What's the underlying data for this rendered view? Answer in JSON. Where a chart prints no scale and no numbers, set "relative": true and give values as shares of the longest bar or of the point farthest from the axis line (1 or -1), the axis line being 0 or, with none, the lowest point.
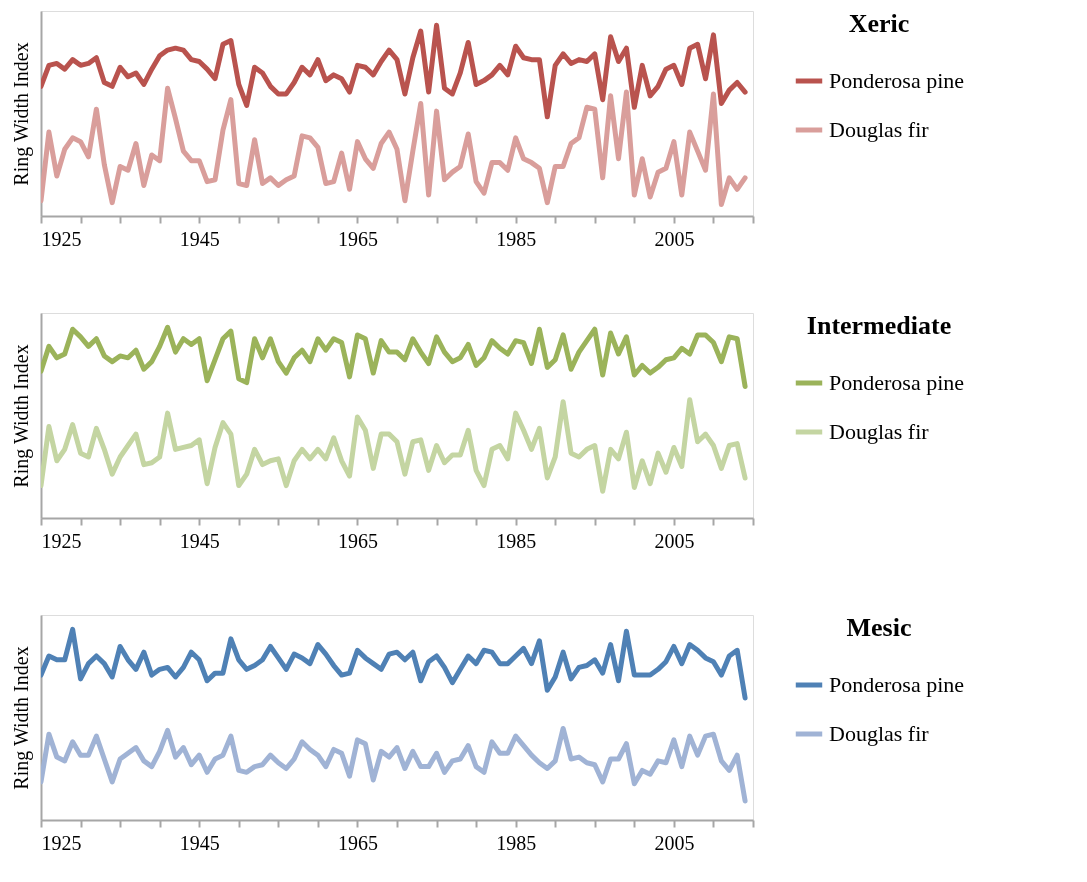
{
  "chart_data": [
    {
      "type": "line",
      "legend_title": "Xeric",
      "ylabel": "Ring Width Index",
      "relative": true,
      "legend": "right",
      "grid": false,
      "line_style": "solid",
      "xlim": [
        1925,
        2015
      ],
      "xticks": [
        1925,
        {
          "value": 1930,
          "label": null
        },
        {
          "value": 1935,
          "label": null
        },
        {
          "value": 1940,
          "label": null
        },
        1945,
        {
          "value": 1950,
          "label": null
        },
        {
          "value": 1955,
          "label": null
        },
        {
          "value": 1960,
          "label": null
        },
        1965,
        {
          "value": 1970,
          "label": null
        },
        {
          "value": 1975,
          "label": null
        },
        {
          "value": 1980,
          "label": null
        },
        1985,
        {
          "value": 1990,
          "label": null
        },
        {
          "value": 1995,
          "label": null
        },
        {
          "value": 2000,
          "label": null
        },
        2005,
        {
          "value": 2010,
          "label": null
        },
        {
          "value": 2015,
          "label": null
        }
      ],
      "x": [
        1925,
        1926,
        1927,
        1928,
        1929,
        1930,
        1931,
        1932,
        1933,
        1934,
        1935,
        1936,
        1937,
        1938,
        1939,
        1940,
        1941,
        1942,
        1943,
        1944,
        1945,
        1946,
        1947,
        1948,
        1949,
        1950,
        1951,
        1952,
        1953,
        1954,
        1955,
        1956,
        1957,
        1958,
        1959,
        1960,
        1961,
        1962,
        1963,
        1964,
        1965,
        1966,
        1967,
        1968,
        1969,
        1970,
        1971,
        1972,
        1973,
        1974,
        1975,
        1976,
        1977,
        1978,
        1979,
        1980,
        1981,
        1982,
        1983,
        1984,
        1985,
        1986,
        1987,
        1988,
        1989,
        1990,
        1991,
        1992,
        1993,
        1994,
        1995,
        1996,
        1997,
        1998,
        1999,
        2000,
        2001,
        2002,
        2003,
        2004,
        2005,
        2006,
        2007,
        2008,
        2009,
        2010,
        2011,
        2012,
        2013,
        2014
      ],
      "series": [
        {
          "name": "Ponderosa pine",
          "color": "#b9534e",
          "values": [
            0.68,
            0.79,
            0.8,
            0.77,
            0.82,
            0.79,
            0.8,
            0.83,
            0.7,
            0.68,
            0.78,
            0.73,
            0.75,
            0.69,
            0.77,
            0.84,
            0.87,
            0.88,
            0.87,
            0.82,
            0.81,
            0.77,
            0.72,
            0.9,
            0.92,
            0.69,
            0.58,
            0.78,
            0.75,
            0.68,
            0.64,
            0.64,
            0.7,
            0.78,
            0.74,
            0.82,
            0.71,
            0.74,
            0.72,
            0.65,
            0.79,
            0.78,
            0.74,
            0.81,
            0.87,
            0.82,
            0.64,
            0.83,
            0.97,
            0.65,
            1.0,
            0.67,
            0.64,
            0.75,
            0.91,
            0.69,
            0.71,
            0.74,
            0.79,
            0.74,
            0.89,
            0.83,
            0.82,
            0.82,
            0.52,
            0.79,
            0.85,
            0.8,
            0.82,
            0.81,
            0.85,
            0.61,
            0.94,
            0.81,
            0.88,
            0.57,
            0.79,
            0.63,
            0.68,
            0.77,
            0.79,
            0.69,
            0.88,
            0.9,
            0.72,
            0.95,
            0.59,
            0.66,
            0.7,
            0.65
          ]
        },
        {
          "name": "Douglas fir",
          "color": "#d99e9b",
          "values": [
            0.08,
            0.44,
            0.21,
            0.35,
            0.41,
            0.39,
            0.31,
            0.56,
            0.27,
            0.07,
            0.26,
            0.24,
            0.38,
            0.16,
            0.32,
            0.29,
            0.67,
            0.51,
            0.34,
            0.29,
            0.29,
            0.18,
            0.19,
            0.45,
            0.61,
            0.17,
            0.16,
            0.4,
            0.17,
            0.2,
            0.16,
            0.19,
            0.21,
            0.42,
            0.41,
            0.36,
            0.17,
            0.18,
            0.33,
            0.14,
            0.39,
            0.3,
            0.25,
            0.38,
            0.44,
            0.35,
            0.08,
            0.34,
            0.59,
            0.11,
            0.55,
            0.19,
            0.23,
            0.26,
            0.43,
            0.18,
            0.12,
            0.28,
            0.28,
            0.24,
            0.41,
            0.3,
            0.28,
            0.25,
            0.07,
            0.26,
            0.26,
            0.38,
            0.41,
            0.57,
            0.56,
            0.2,
            0.63,
            0.3,
            0.65,
            0.11,
            0.3,
            0.1,
            0.23,
            0.25,
            0.39,
            0.11,
            0.44,
            0.34,
            0.24,
            0.64,
            0.06,
            0.2,
            0.14,
            0.2
          ]
        }
      ]
    },
    {
      "type": "line",
      "legend_title": "Intermediate",
      "ylabel": "Ring Width Index",
      "relative": true,
      "legend": "right",
      "grid": false,
      "line_style": "solid",
      "xlim": [
        1925,
        2015
      ],
      "xticks": [
        1925,
        {
          "value": 1930,
          "label": null
        },
        {
          "value": 1935,
          "label": null
        },
        {
          "value": 1940,
          "label": null
        },
        1945,
        {
          "value": 1950,
          "label": null
        },
        {
          "value": 1955,
          "label": null
        },
        {
          "value": 1960,
          "label": null
        },
        1965,
        {
          "value": 1970,
          "label": null
        },
        {
          "value": 1975,
          "label": null
        },
        {
          "value": 1980,
          "label": null
        },
        1985,
        {
          "value": 1990,
          "label": null
        },
        {
          "value": 1995,
          "label": null
        },
        {
          "value": 2000,
          "label": null
        },
        2005,
        {
          "value": 2010,
          "label": null
        },
        {
          "value": 2015,
          "label": null
        }
      ],
      "x": [
        1925,
        1926,
        1927,
        1928,
        1929,
        1930,
        1931,
        1932,
        1933,
        1934,
        1935,
        1936,
        1937,
        1938,
        1939,
        1940,
        1941,
        1942,
        1943,
        1944,
        1945,
        1946,
        1947,
        1948,
        1949,
        1950,
        1951,
        1952,
        1953,
        1954,
        1955,
        1956,
        1957,
        1958,
        1959,
        1960,
        1961,
        1962,
        1963,
        1964,
        1965,
        1966,
        1967,
        1968,
        1969,
        1970,
        1971,
        1972,
        1973,
        1974,
        1975,
        1976,
        1977,
        1978,
        1979,
        1980,
        1981,
        1982,
        1983,
        1984,
        1985,
        1986,
        1987,
        1988,
        1989,
        1990,
        1991,
        1992,
        1993,
        1994,
        1995,
        1996,
        1997,
        1998,
        1999,
        2000,
        2001,
        2002,
        2003,
        2004,
        2005,
        2006,
        2007,
        2008,
        2009,
        2010,
        2011,
        2012,
        2013,
        2014
      ],
      "series": [
        {
          "name": "Ponderosa pine",
          "color": "#9bb35a",
          "values": [
            0.77,
            0.9,
            0.84,
            0.86,
            0.99,
            0.95,
            0.9,
            0.94,
            0.85,
            0.82,
            0.85,
            0.84,
            0.88,
            0.78,
            0.82,
            0.9,
            1.0,
            0.87,
            0.94,
            0.91,
            0.94,
            0.72,
            0.83,
            0.94,
            0.98,
            0.73,
            0.71,
            0.94,
            0.84,
            0.94,
            0.82,
            0.76,
            0.84,
            0.88,
            0.82,
            0.94,
            0.88,
            0.94,
            0.92,
            0.74,
            0.96,
            0.94,
            0.76,
            0.93,
            0.87,
            0.87,
            0.83,
            0.94,
            0.87,
            0.81,
            0.95,
            0.87,
            0.82,
            0.84,
            0.91,
            0.8,
            0.84,
            0.93,
            0.89,
            0.86,
            0.93,
            0.92,
            0.81,
            0.99,
            0.79,
            0.83,
            0.96,
            0.78,
            0.87,
            0.93,
            0.99,
            0.75,
            0.97,
            0.86,
            0.95,
            0.75,
            0.8,
            0.76,
            0.79,
            0.83,
            0.84,
            0.89,
            0.86,
            0.96,
            0.96,
            0.92,
            0.82,
            0.95,
            0.94,
            0.69
          ]
        },
        {
          "name": "Douglas fir",
          "color": "#c4d5a2",
          "values": [
            0.17,
            0.48,
            0.3,
            0.36,
            0.49,
            0.34,
            0.32,
            0.47,
            0.36,
            0.23,
            0.32,
            0.38,
            0.44,
            0.28,
            0.29,
            0.32,
            0.55,
            0.36,
            0.37,
            0.38,
            0.41,
            0.18,
            0.37,
            0.5,
            0.44,
            0.17,
            0.23,
            0.36,
            0.28,
            0.3,
            0.31,
            0.17,
            0.3,
            0.36,
            0.31,
            0.36,
            0.31,
            0.42,
            0.3,
            0.22,
            0.53,
            0.46,
            0.26,
            0.44,
            0.44,
            0.4,
            0.23,
            0.4,
            0.41,
            0.25,
            0.38,
            0.29,
            0.33,
            0.33,
            0.46,
            0.25,
            0.17,
            0.36,
            0.38,
            0.31,
            0.55,
            0.46,
            0.36,
            0.47,
            0.21,
            0.32,
            0.61,
            0.34,
            0.32,
            0.36,
            0.38,
            0.14,
            0.36,
            0.31,
            0.45,
            0.16,
            0.3,
            0.18,
            0.34,
            0.24,
            0.37,
            0.27,
            0.62,
            0.4,
            0.44,
            0.38,
            0.26,
            0.38,
            0.39,
            0.21
          ]
        }
      ]
    },
    {
      "type": "line",
      "legend_title": "Mesic",
      "ylabel": "Ring Width Index",
      "relative": true,
      "legend": "right",
      "grid": false,
      "line_style": "solid",
      "xlim": [
        1925,
        2015
      ],
      "xticks": [
        1925,
        {
          "value": 1930,
          "label": null
        },
        {
          "value": 1935,
          "label": null
        },
        {
          "value": 1940,
          "label": null
        },
        1945,
        {
          "value": 1950,
          "label": null
        },
        {
          "value": 1955,
          "label": null
        },
        {
          "value": 1960,
          "label": null
        },
        1965,
        {
          "value": 1970,
          "label": null
        },
        {
          "value": 1975,
          "label": null
        },
        {
          "value": 1980,
          "label": null
        },
        1985,
        {
          "value": 1990,
          "label": null
        },
        {
          "value": 1995,
          "label": null
        },
        {
          "value": 2000,
          "label": null
        },
        2005,
        {
          "value": 2010,
          "label": null
        },
        {
          "value": 2015,
          "label": null
        }
      ],
      "x": [
        1925,
        1926,
        1927,
        1928,
        1929,
        1930,
        1931,
        1932,
        1933,
        1934,
        1935,
        1936,
        1937,
        1938,
        1939,
        1940,
        1941,
        1942,
        1943,
        1944,
        1945,
        1946,
        1947,
        1948,
        1949,
        1950,
        1951,
        1952,
        1953,
        1954,
        1955,
        1956,
        1957,
        1958,
        1959,
        1960,
        1961,
        1962,
        1963,
        1964,
        1965,
        1966,
        1967,
        1968,
        1969,
        1970,
        1971,
        1972,
        1973,
        1974,
        1975,
        1976,
        1977,
        1978,
        1979,
        1980,
        1981,
        1982,
        1983,
        1984,
        1985,
        1986,
        1987,
        1988,
        1989,
        1990,
        1991,
        1992,
        1993,
        1994,
        1995,
        1996,
        1997,
        1998,
        1999,
        2000,
        2001,
        2002,
        2003,
        2004,
        2005,
        2006,
        2007,
        2008,
        2009,
        2010,
        2011,
        2012,
        2013,
        2014
      ],
      "series": [
        {
          "name": "Ponderosa pine",
          "color": "#4f81b5",
          "values": [
            0.76,
            0.86,
            0.84,
            0.84,
            1.0,
            0.74,
            0.82,
            0.86,
            0.82,
            0.75,
            0.91,
            0.84,
            0.79,
            0.88,
            0.76,
            0.79,
            0.8,
            0.75,
            0.8,
            0.88,
            0.84,
            0.73,
            0.77,
            0.77,
            0.95,
            0.84,
            0.79,
            0.81,
            0.84,
            0.91,
            0.85,
            0.79,
            0.87,
            0.85,
            0.82,
            0.92,
            0.87,
            0.81,
            0.76,
            0.77,
            0.89,
            0.85,
            0.82,
            0.79,
            0.87,
            0.88,
            0.84,
            0.88,
            0.73,
            0.83,
            0.86,
            0.8,
            0.72,
            0.79,
            0.86,
            0.82,
            0.89,
            0.88,
            0.82,
            0.82,
            0.86,
            0.9,
            0.82,
            0.94,
            0.68,
            0.75,
            0.88,
            0.74,
            0.8,
            0.81,
            0.84,
            0.77,
            0.92,
            0.73,
            0.99,
            0.76,
            0.76,
            0.76,
            0.79,
            0.83,
            0.91,
            0.82,
            0.92,
            0.89,
            0.85,
            0.83,
            0.76,
            0.86,
            0.89,
            0.64
          ]
        },
        {
          "name": "Douglas fir",
          "color": "#a0b3d5",
          "values": [
            0.2,
            0.45,
            0.33,
            0.31,
            0.41,
            0.34,
            0.34,
            0.44,
            0.32,
            0.2,
            0.32,
            0.35,
            0.38,
            0.31,
            0.28,
            0.36,
            0.47,
            0.33,
            0.38,
            0.29,
            0.34,
            0.25,
            0.32,
            0.34,
            0.44,
            0.26,
            0.25,
            0.28,
            0.29,
            0.34,
            0.3,
            0.27,
            0.32,
            0.41,
            0.37,
            0.34,
            0.28,
            0.37,
            0.35,
            0.23,
            0.42,
            0.4,
            0.21,
            0.36,
            0.33,
            0.38,
            0.27,
            0.36,
            0.28,
            0.28,
            0.35,
            0.25,
            0.31,
            0.32,
            0.39,
            0.28,
            0.25,
            0.41,
            0.35,
            0.35,
            0.44,
            0.39,
            0.34,
            0.3,
            0.27,
            0.31,
            0.48,
            0.32,
            0.33,
            0.3,
            0.29,
            0.2,
            0.32,
            0.32,
            0.4,
            0.19,
            0.26,
            0.24,
            0.31,
            0.3,
            0.42,
            0.28,
            0.44,
            0.34,
            0.44,
            0.45,
            0.31,
            0.26,
            0.34,
            0.1
          ]
        }
      ]
    }
  ]
}
